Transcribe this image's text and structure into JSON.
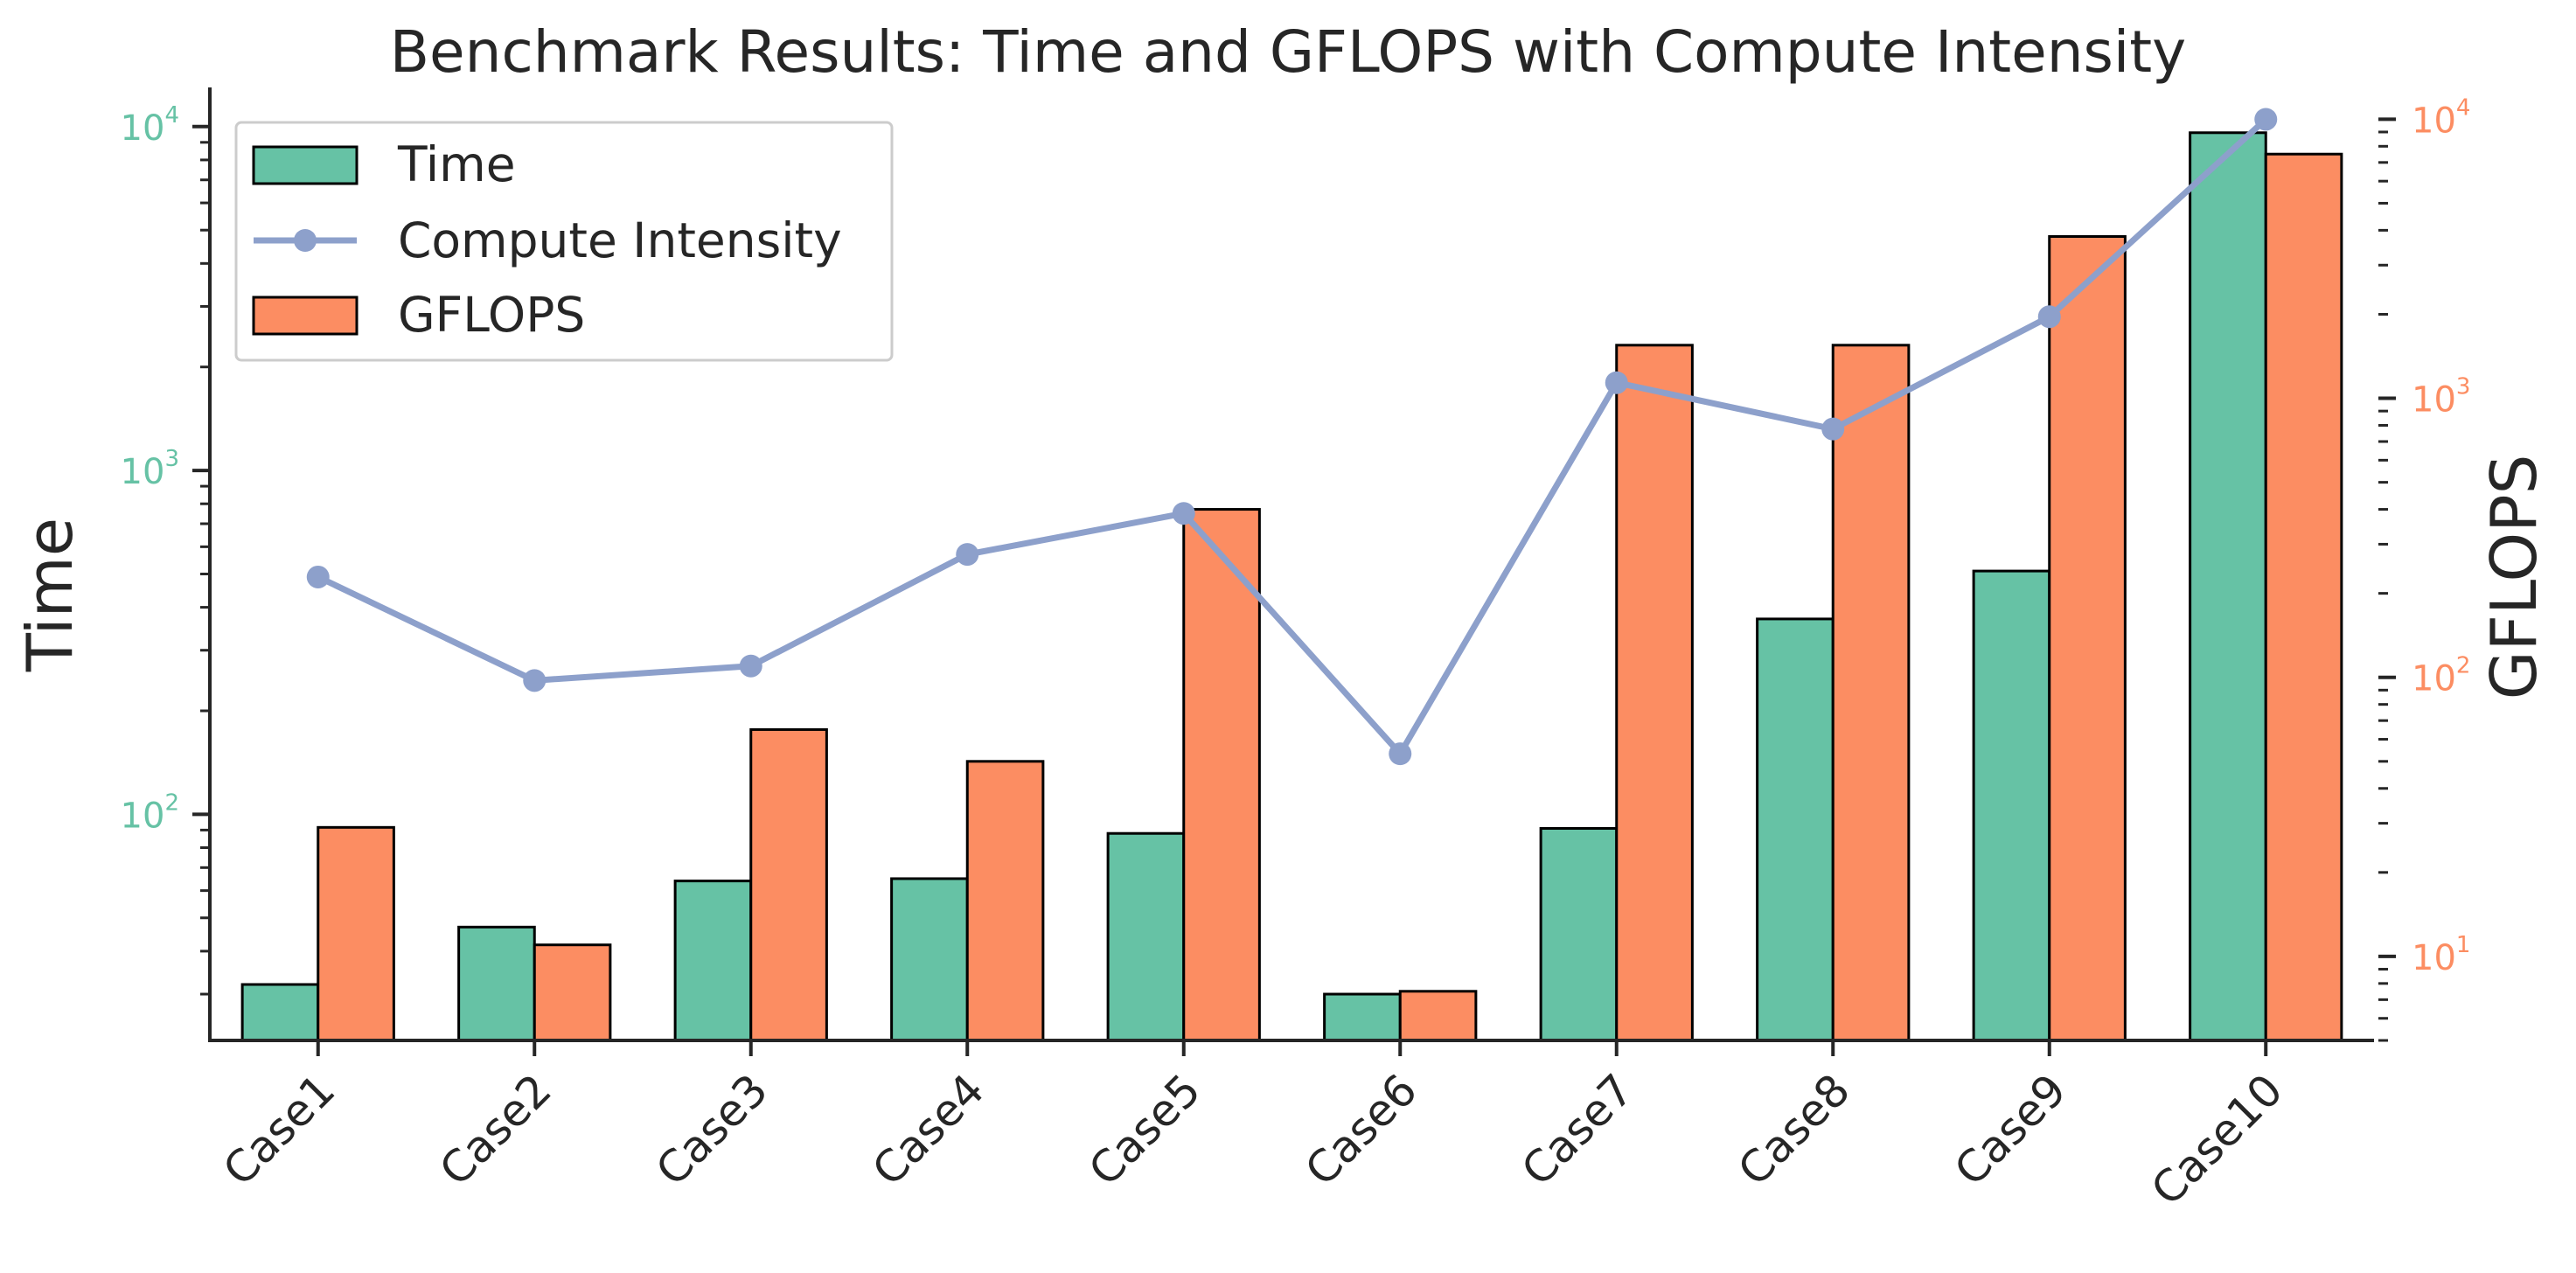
{
  "chart_data": {
    "type": "bar",
    "title": "Benchmark Results: Time and GFLOPS with Compute Intensity",
    "categories": [
      "Case1",
      "Case2",
      "Case3",
      "Case4",
      "Case5",
      "Case6",
      "Case7",
      "Case8",
      "Case9",
      "Case10"
    ],
    "ylabel_left": "Time",
    "ylabel_right": "GFLOPS",
    "yscale": "log",
    "ylim_left": [
      22,
      13000
    ],
    "ylim_right": [
      5,
      13000
    ],
    "left_ticks": [
      "10^2",
      "10^3",
      "10^4"
    ],
    "right_ticks": [
      "10^1",
      "10^2",
      "10^3",
      "10^4"
    ],
    "series": [
      {
        "name": "Time",
        "axis": "left",
        "kind": "bar",
        "color": "#66c2a5",
        "values": [
          32,
          47,
          64,
          65,
          88,
          30,
          91,
          370,
          510,
          9600
        ]
      },
      {
        "name": "GFLOPS",
        "axis": "right",
        "kind": "bar",
        "color": "#fc8d62",
        "values": [
          29,
          11,
          65,
          50,
          400,
          7.5,
          1550,
          1550,
          3800,
          7500
        ]
      },
      {
        "name": "Compute Intensity",
        "axis": "left",
        "kind": "line",
        "color": "#8da0cb",
        "values": [
          490,
          245,
          270,
          570,
          750,
          150,
          1800,
          1320,
          2800,
          10500
        ]
      }
    ],
    "legend": {
      "position": "top-left",
      "entries": [
        "Time",
        "Compute Intensity",
        "GFLOPS"
      ]
    },
    "grid": false
  }
}
